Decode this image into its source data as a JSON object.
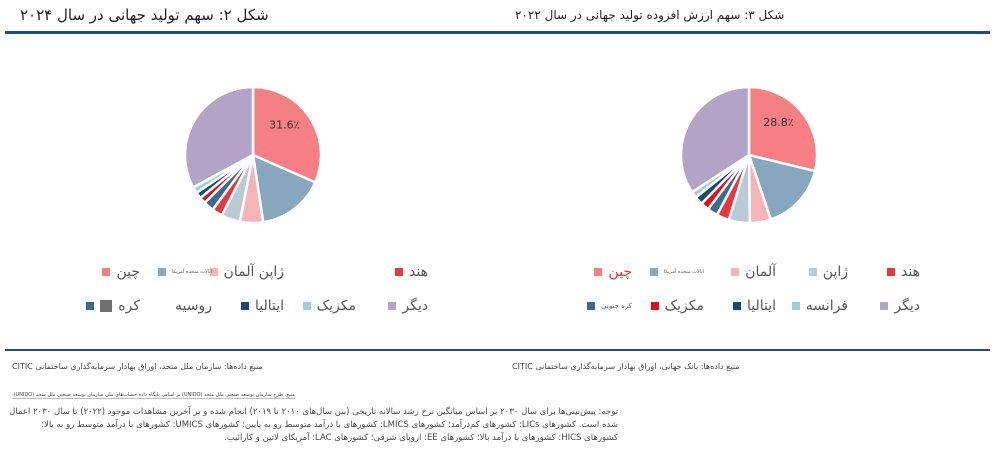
{
  "titles": {
    "left": "شکل ۲: سهم تولید جهانی در سال ۲۰۲۴",
    "right": "شکل ۳: سهم ارزش افزوده تولید جهانی در سال ۲۰۲۲"
  },
  "colors": {
    "accent_rule": "#1d4f73"
  },
  "chart_data": [
    {
      "type": "pie",
      "title": "شکل ۲: سهم تولید جهانی در سال ۲۰۲۴",
      "unit": "%",
      "slices": [
        {
          "label": "چین",
          "value": 31.6,
          "color": "#f47f84",
          "shown_label": "31.6٪"
        },
        {
          "label": "ایالات متحده آمریکا",
          "value": 16,
          "color": "#86a7bd"
        },
        {
          "label": "آلمان",
          "value": 5.5,
          "color": "#f6b3b8"
        },
        {
          "label": "ژاپن",
          "value": 4.5,
          "color": "#b9c9d6"
        },
        {
          "label": "هند",
          "value": 2.5,
          "color": "#e8383d"
        },
        {
          "label": "کره",
          "value": 2.5,
          "color": "#3b6a8f"
        },
        {
          "label": "مکزیک",
          "value": 1.5,
          "color": "#e00e1a"
        },
        {
          "label": "ایتالیا",
          "value": 1.5,
          "color": "#164c74"
        },
        {
          "label": "روسیه",
          "value": 1.5,
          "color": "#9fcfdc"
        },
        {
          "label": "دیگر",
          "value": 32.9,
          "color": "#b2a3c7"
        }
      ]
    },
    {
      "type": "pie",
      "title": "شکل ۳: سهم ارزش افزوده تولید جهانی در سال ۲۰۲۲",
      "unit": "%",
      "slices": [
        {
          "label": "چین",
          "value": 28.8,
          "color": "#f47f84",
          "shown_label": "28.8٪"
        },
        {
          "label": "ایالات متحده آمریکا",
          "value": 16,
          "color": "#86a7bd"
        },
        {
          "label": "آلمان",
          "value": 5,
          "color": "#f6b3b8"
        },
        {
          "label": "ژاپن",
          "value": 5,
          "color": "#b9c9d6"
        },
        {
          "label": "هند",
          "value": 3,
          "color": "#e8383d"
        },
        {
          "label": "کره جنوبی",
          "value": 2.5,
          "color": "#3b6a8f"
        },
        {
          "label": "مکزیک",
          "value": 2,
          "color": "#e00e1a"
        },
        {
          "label": "ایتالیا",
          "value": 2,
          "color": "#164c74"
        },
        {
          "label": "فرانسه",
          "value": 1.5,
          "color": "#9fcfdc"
        },
        {
          "label": "دیگر",
          "value": 34.2,
          "color": "#b2a3c7"
        }
      ]
    }
  ],
  "legend_left": [
    {
      "label": "هند",
      "color": "#e8383d"
    },
    {
      "label": "",
      "color": ""
    },
    {
      "label": "ژاپن آلمان",
      "color": "#f6b3b8"
    },
    {
      "label": "ایالات متحده آمریکا",
      "color": "#86a7bd",
      "tiny": true
    },
    {
      "label": "چین",
      "color": "#f47f84"
    },
    {
      "label": "دیگر",
      "color": "#b2a3c7"
    },
    {
      "label": "مکزیک",
      "color": "#9fcfdc"
    },
    {
      "label": "ایتالیا",
      "color": "#164c74"
    },
    {
      "label": "روسیه",
      "color": ""
    },
    {
      "label": "کره",
      "color": "#3b6a8f",
      "extra_color": "#707070"
    }
  ],
  "legend_right": [
    {
      "label": "هند",
      "color": "#e8383d"
    },
    {
      "label": "ژاپن",
      "color": "#b9c9d6"
    },
    {
      "label": "آلمان",
      "color": "#f6b3b8"
    },
    {
      "label": "ایالات متحده آمریکا",
      "color": "#86a7bd",
      "tiny": true
    },
    {
      "label": "چین",
      "color": "#f47f84",
      "text_color": "#e0303a"
    },
    {
      "label": "دیگر",
      "color": "#b2a3c7"
    },
    {
      "label": "فرانسه",
      "color": "#9fcfdc"
    },
    {
      "label": "ایتالیا",
      "color": "#164c74"
    },
    {
      "label": "مکزیک",
      "color": "#e00e1a"
    },
    {
      "label": "کره جنوبی",
      "color": "#3b6a8f",
      "small": true
    }
  ],
  "sources": {
    "left": "منبع داده‌ها: سازمان ملل متحد، اوراق بهادار سرمایه‌گذاری ساختمانی CITIC",
    "right": "منبع داده‌ها: بانک جهانی، اوراق بهادار سرمایه‌گذاری ساختمانی CITIC",
    "small": "منبع: طرح سازمان توسعه صنعتی ملل متحد (UNIDO) بر اساس پایگاه داده حساب‌های ملی سازمان توسعه صنعتی ملل متحد (UNIDO)."
  },
  "note": "توجه: پیش‌بینی‌ها برای سال ۲۰۳۰ بر اساس میانگین نرخ رشد سالانه تاریخی (بین سال‌های ۲۰۱۰ تا ۲۰۱۹) انجام شده و بر آخرین مشاهدات موجود (۲۰۲۲) تا سال ۲۰۳۰ اعمال شده است. کشورهای LICs: کشورهای کم‌درآمد؛ کشورهای LMICS: کشورهای با درآمد متوسط رو به پایین؛ کشورهای UMICS: کشورهای با درآمد متوسط رو به بالا؛ کشورهای HICS: کشورهای با درآمد بالا؛ کشورهای EE: اروپای شرقی؛ کشورهای LAC: آمریکای لاتین و کارائیب."
}
